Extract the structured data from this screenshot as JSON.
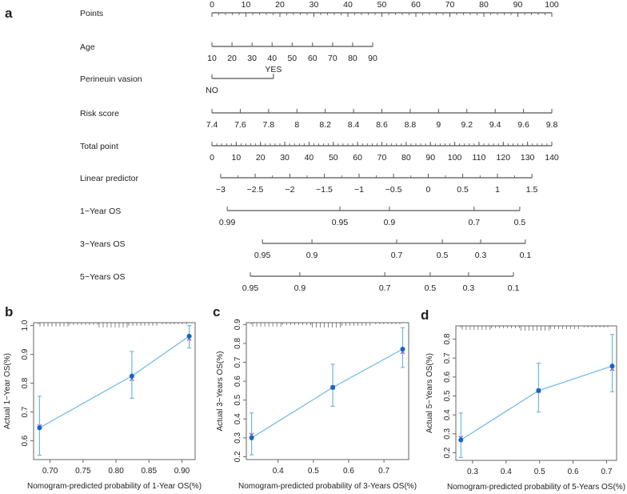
{
  "chart_data": [
    {
      "type": "nomogram",
      "panel_label": "a",
      "rows": [
        {
          "label": "Points",
          "scale": "points",
          "labels_above": true,
          "minor_step": 2,
          "ticks": [
            {
              "label": "0",
              "pos": 0
            },
            {
              "label": "10",
              "pos": 10
            },
            {
              "label": "20",
              "pos": 20
            },
            {
              "label": "30",
              "pos": 30
            },
            {
              "label": "40",
              "pos": 40
            },
            {
              "label": "50",
              "pos": 50
            },
            {
              "label": "60",
              "pos": 60
            },
            {
              "label": "70",
              "pos": 70
            },
            {
              "label": "80",
              "pos": 80
            },
            {
              "label": "90",
              "pos": 90
            },
            {
              "label": "100",
              "pos": 100
            }
          ]
        },
        {
          "label": "Age",
          "scale": "points",
          "ticks": [
            {
              "label": "10",
              "pos": 0
            },
            {
              "label": "20",
              "pos": 5.9
            },
            {
              "label": "30",
              "pos": 11.8
            },
            {
              "label": "40",
              "pos": 17.7
            },
            {
              "label": "50",
              "pos": 23.6
            },
            {
              "label": "60",
              "pos": 29.6
            },
            {
              "label": "70",
              "pos": 35.5
            },
            {
              "label": "80",
              "pos": 41.4
            },
            {
              "label": "90",
              "pos": 47.3
            }
          ]
        },
        {
          "label": "Perineuin vasion",
          "scale": "points",
          "categorical": true,
          "ticks": [
            {
              "label": "NO",
              "pos": 0,
              "side": "below"
            },
            {
              "label": "YES",
              "pos": 18.1,
              "side": "above"
            }
          ]
        },
        {
          "label": "Risk score",
          "scale": "points",
          "ticks": [
            {
              "label": "7.4",
              "pos": 0
            },
            {
              "label": "7.6",
              "pos": 8.33
            },
            {
              "label": "7.8",
              "pos": 16.67
            },
            {
              "label": "8",
              "pos": 25
            },
            {
              "label": "8.2",
              "pos": 33.33
            },
            {
              "label": "8.4",
              "pos": 41.67
            },
            {
              "label": "8.6",
              "pos": 50
            },
            {
              "label": "8.8",
              "pos": 58.33
            },
            {
              "label": "9",
              "pos": 66.67
            },
            {
              "label": "9.2",
              "pos": 75
            },
            {
              "label": "9.4",
              "pos": 83.33
            },
            {
              "label": "9.6",
              "pos": 91.67
            },
            {
              "label": "9.8",
              "pos": 100
            }
          ]
        },
        {
          "label": "Total point",
          "scale": "total",
          "minor_step": 2,
          "ticks": [
            {
              "label": "0",
              "pos": 0
            },
            {
              "label": "10",
              "pos": 10
            },
            {
              "label": "20",
              "pos": 20
            },
            {
              "label": "30",
              "pos": 30
            },
            {
              "label": "40",
              "pos": 40
            },
            {
              "label": "50",
              "pos": 50
            },
            {
              "label": "60",
              "pos": 60
            },
            {
              "label": "70",
              "pos": 70
            },
            {
              "label": "80",
              "pos": 80
            },
            {
              "label": "90",
              "pos": 90
            },
            {
              "label": "100",
              "pos": 100
            },
            {
              "label": "110",
              "pos": 110
            },
            {
              "label": "120",
              "pos": 120
            },
            {
              "label": "130",
              "pos": 130
            },
            {
              "label": "140",
              "pos": 140
            }
          ]
        },
        {
          "label": "Linear predictor",
          "scale": "total",
          "minor_half": true,
          "ticks": [
            {
              "label": "−3",
              "pos": 3.6
            },
            {
              "label": "−2.5",
              "pos": 17.8
            },
            {
              "label": "−2",
              "pos": 32.1
            },
            {
              "label": "−1.5",
              "pos": 46.3
            },
            {
              "label": "−1",
              "pos": 60.6
            },
            {
              "label": "−0.5",
              "pos": 74.8
            },
            {
              "label": "0",
              "pos": 89.1
            },
            {
              "label": "0.5",
              "pos": 103.3
            },
            {
              "label": "1",
              "pos": 117.6
            },
            {
              "label": "1.5",
              "pos": 131.8
            }
          ]
        },
        {
          "label": "1−Year OS",
          "scale": "total",
          "ticks": [
            {
              "label": "0.99",
              "pos": 6.3
            },
            {
              "label": "0.95",
              "pos": 52.7
            },
            {
              "label": "0.9",
              "pos": 73.1
            },
            {
              "label": "0.7",
              "pos": 108.0
            },
            {
              "label": "0.5",
              "pos": 126.8
            }
          ]
        },
        {
          "label": "3−Years OS",
          "scale": "total",
          "ticks": [
            {
              "label": "0.95",
              "pos": 20.8
            },
            {
              "label": "0.9",
              "pos": 41.2
            },
            {
              "label": "0.7",
              "pos": 76.1
            },
            {
              "label": "0.5",
              "pos": 94.9
            },
            {
              "label": "0.3",
              "pos": 110.7
            },
            {
              "label": "0.1",
              "pos": 129.1
            }
          ]
        },
        {
          "label": "5−Years OS",
          "scale": "total",
          "ticks": [
            {
              "label": "0.95",
              "pos": 15.8
            },
            {
              "label": "0.9",
              "pos": 36.2
            },
            {
              "label": "0.7",
              "pos": 71.2
            },
            {
              "label": "0.5",
              "pos": 89.9
            },
            {
              "label": "0.3",
              "pos": 105.7
            },
            {
              "label": "0.1",
              "pos": 124.2
            }
          ]
        }
      ]
    },
    {
      "type": "calibration",
      "panel_label": "b",
      "xlabel": "Nomogram-predicted probability of 1-Year OS(%)",
      "ylabel": "Actual 1−Year OS(%)",
      "xlim": [
        0.675,
        0.92
      ],
      "ylim": [
        0.535,
        1.01
      ],
      "xticks": [
        0.7,
        0.75,
        0.8,
        0.85,
        0.9
      ],
      "xtick_labels": [
        "0.70",
        "0.75",
        "0.80",
        "0.85",
        "0.90"
      ],
      "yticks": [
        0.6,
        0.7,
        0.8,
        0.9,
        1.0
      ],
      "ytick_labels": [
        "0.6",
        "0.7",
        "0.8",
        "0.9",
        "1.0"
      ],
      "points": [
        {
          "x": 0.684,
          "y": 0.645,
          "lo": 0.55,
          "hi": 0.755,
          "corrected": 0.65
        },
        {
          "x": 0.824,
          "y": 0.825,
          "lo": 0.748,
          "hi": 0.91,
          "corrected": 0.815
        },
        {
          "x": 0.911,
          "y": 0.963,
          "lo": 0.922,
          "hi": 1.0,
          "corrected": 0.955
        }
      ]
    },
    {
      "type": "calibration",
      "panel_label": "c",
      "xlabel": "Nomogram-predicted probability of 3-Years OS(%)",
      "ylabel": "Actual 3−Years OS(%)",
      "xlim": [
        0.31,
        0.77
      ],
      "ylim": [
        0.185,
        0.91
      ],
      "xticks": [
        0.4,
        0.5,
        0.6,
        0.7
      ],
      "xtick_labels": [
        "0.4",
        "0.5",
        "0.6",
        "0.7"
      ],
      "yticks": [
        0.2,
        0.3,
        0.4,
        0.5,
        0.6,
        0.7,
        0.8,
        0.9
      ],
      "ytick_labels": [
        "0.2",
        "0.3",
        "0.4",
        "0.5",
        "0.6",
        "0.7",
        "0.8",
        "0.9"
      ],
      "points": [
        {
          "x": 0.325,
          "y": 0.3,
          "lo": 0.21,
          "hi": 0.432,
          "corrected": 0.315
        },
        {
          "x": 0.555,
          "y": 0.567,
          "lo": 0.467,
          "hi": 0.69,
          "corrected": 0.567
        },
        {
          "x": 0.753,
          "y": 0.77,
          "lo": 0.673,
          "hi": 0.883,
          "corrected": 0.755
        }
      ]
    },
    {
      "type": "calibration",
      "panel_label": "d",
      "xlabel": "Nomogram-predicted probability of 5-Years OS(%)",
      "ylabel": "Actual 5−Years OS(%)",
      "xlim": [
        0.25,
        0.73
      ],
      "ylim": [
        0.16,
        0.87
      ],
      "xticks": [
        0.3,
        0.4,
        0.5,
        0.6,
        0.7
      ],
      "xtick_labels": [
        "0.3",
        "0.4",
        "0.5",
        "0.6",
        "0.7"
      ],
      "yticks": [
        0.2,
        0.3,
        0.4,
        0.5,
        0.6,
        0.7,
        0.8
      ],
      "ytick_labels": [
        "0.2",
        "0.3",
        "0.4",
        "0.5",
        "0.6",
        "0.7",
        "0.8"
      ],
      "points": [
        {
          "x": 0.265,
          "y": 0.268,
          "lo": 0.175,
          "hi": 0.41,
          "corrected": 0.278
        },
        {
          "x": 0.497,
          "y": 0.528,
          "lo": 0.415,
          "hi": 0.673,
          "corrected": 0.528
        },
        {
          "x": 0.717,
          "y": 0.658,
          "lo": 0.522,
          "hi": 0.825,
          "corrected": 0.643
        }
      ]
    }
  ],
  "colors": {
    "line": "#6db6e8",
    "point": "#1565c0",
    "cross": "#7b5cd6",
    "axis": "#555555"
  }
}
